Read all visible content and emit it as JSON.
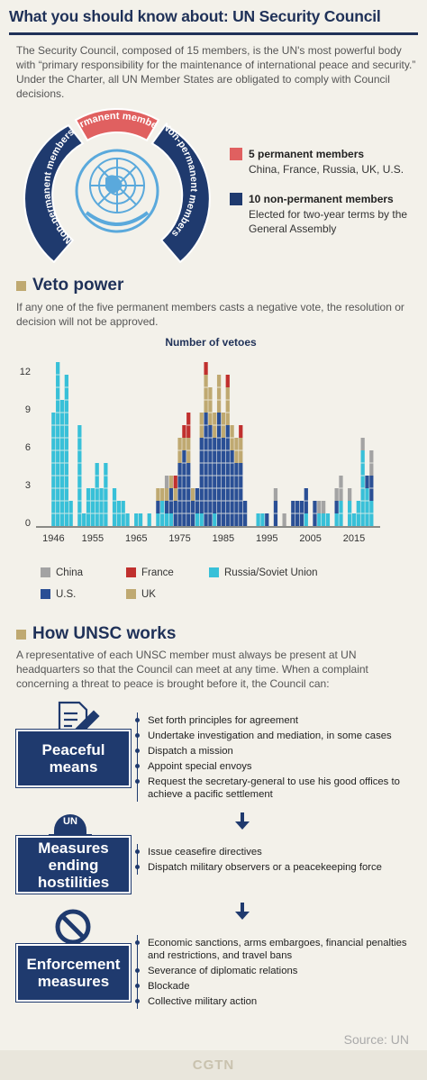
{
  "header": {
    "title": "What you should know about: UN Security Council",
    "intro": "The Security Council, composed of 15 members, is the UN's most powerful body with “primary responsibility for the maintenance of international peace and security.” Under the Charter, all UN Member States are obligated to comply with Council decisions."
  },
  "membership": {
    "arc_labels": [
      "Non-permanent members",
      "Permanent members",
      "Non-permanent members"
    ],
    "items": [
      {
        "title": "5 permanent members",
        "text": "China, France, Russia, UK, U.S."
      },
      {
        "title": "10 non-permanent members",
        "text": "Elected for two-year terms by the General Assembly"
      }
    ]
  },
  "veto": {
    "heading": "Veto power",
    "text": "If any one of the five permanent members casts a negative vote, the resolution or decision will not be approved."
  },
  "chart_data": {
    "type": "bar",
    "stacked": true,
    "title": "Number of vetoes",
    "x": [
      1946,
      1947,
      1948,
      1949,
      1950,
      1951,
      1952,
      1953,
      1954,
      1955,
      1956,
      1957,
      1958,
      1959,
      1960,
      1961,
      1962,
      1963,
      1964,
      1965,
      1966,
      1967,
      1968,
      1969,
      1970,
      1971,
      1972,
      1973,
      1974,
      1975,
      1976,
      1977,
      1978,
      1979,
      1980,
      1981,
      1982,
      1983,
      1984,
      1985,
      1986,
      1987,
      1988,
      1989,
      1990,
      1991,
      1992,
      1993,
      1994,
      1995,
      1996,
      1997,
      1998,
      1999,
      2000,
      2001,
      2002,
      2003,
      2004,
      2005,
      2006,
      2007,
      2008,
      2009,
      2010,
      2011,
      2012,
      2013,
      2014,
      2015,
      2016,
      2017,
      2018,
      2019
    ],
    "xlim": [
      1942,
      2021
    ],
    "xticks": [
      1946,
      1955,
      1965,
      1975,
      1985,
      1995,
      2005,
      2015
    ],
    "ylim": [
      0,
      13
    ],
    "yticks": [
      0,
      3,
      6,
      9,
      12
    ],
    "series": [
      {
        "name": "China",
        "color": "#a3a3a3",
        "values": [
          0,
          0,
          0,
          0,
          0,
          0,
          0,
          0,
          0,
          0,
          0,
          0,
          0,
          0,
          0,
          0,
          0,
          0,
          0,
          0,
          0,
          0,
          0,
          0,
          0,
          0,
          1,
          0,
          0,
          0,
          0,
          0,
          0,
          0,
          0,
          0,
          0,
          0,
          0,
          0,
          0,
          0,
          0,
          0,
          0,
          0,
          0,
          0,
          0,
          0,
          0,
          1,
          0,
          1,
          0,
          0,
          0,
          0,
          0,
          0,
          0,
          1,
          1,
          0,
          0,
          1,
          2,
          0,
          1,
          0,
          0,
          1,
          0,
          2
        ]
      },
      {
        "name": "France",
        "color": "#c0302e",
        "values": [
          0,
          0,
          0,
          0,
          0,
          0,
          0,
          0,
          0,
          0,
          0,
          0,
          0,
          0,
          0,
          0,
          0,
          0,
          0,
          0,
          0,
          0,
          0,
          0,
          0,
          0,
          0,
          0,
          1,
          0,
          1,
          2,
          0,
          0,
          0,
          1,
          0,
          0,
          0,
          0,
          1,
          0,
          0,
          1,
          0,
          0,
          0,
          0,
          0,
          0,
          0,
          0,
          0,
          0,
          0,
          0,
          0,
          0,
          0,
          0,
          0,
          0,
          0,
          0,
          0,
          0,
          0,
          0,
          0,
          0,
          0,
          0,
          0,
          0
        ]
      },
      {
        "name": "Russia/Soviet Union",
        "color": "#38c0d8",
        "values": [
          9,
          13,
          10,
          12,
          2,
          0,
          8,
          1,
          3,
          3,
          5,
          3,
          5,
          0,
          3,
          2,
          2,
          1,
          0,
          1,
          1,
          0,
          1,
          0,
          1,
          2,
          1,
          1,
          0,
          0,
          0,
          0,
          0,
          1,
          1,
          0,
          0,
          1,
          0,
          0,
          0,
          0,
          0,
          0,
          0,
          0,
          0,
          1,
          1,
          0,
          0,
          0,
          0,
          0,
          0,
          0,
          0,
          0,
          1,
          0,
          0,
          1,
          1,
          1,
          0,
          1,
          2,
          0,
          2,
          1,
          2,
          6,
          3,
          2
        ]
      },
      {
        "name": "U.S.",
        "color": "#2a4f95",
        "values": [
          0,
          0,
          0,
          0,
          0,
          0,
          0,
          0,
          0,
          0,
          0,
          0,
          0,
          0,
          0,
          0,
          0,
          0,
          0,
          0,
          0,
          0,
          0,
          0,
          1,
          0,
          1,
          2,
          2,
          5,
          6,
          5,
          2,
          2,
          6,
          9,
          8,
          6,
          9,
          7,
          8,
          6,
          5,
          5,
          2,
          0,
          0,
          0,
          0,
          1,
          0,
          2,
          0,
          0,
          0,
          2,
          2,
          2,
          2,
          0,
          2,
          0,
          0,
          0,
          0,
          1,
          0,
          0,
          0,
          0,
          0,
          0,
          1,
          2
        ]
      },
      {
        "name": "UK",
        "color": "#bfa971",
        "values": [
          0,
          0,
          0,
          0,
          0,
          0,
          0,
          0,
          0,
          0,
          0,
          0,
          0,
          0,
          0,
          0,
          0,
          0,
          0,
          0,
          0,
          0,
          0,
          0,
          1,
          1,
          1,
          1,
          1,
          2,
          1,
          2,
          1,
          0,
          2,
          3,
          3,
          2,
          3,
          2,
          3,
          2,
          2,
          2,
          0,
          0,
          0,
          0,
          0,
          0,
          0,
          0,
          0,
          0,
          0,
          0,
          0,
          0,
          0,
          0,
          0,
          0,
          0,
          0,
          0,
          0,
          0,
          0,
          0,
          0,
          0,
          0,
          0,
          0
        ]
      }
    ]
  },
  "works": {
    "heading": "How UNSC works",
    "text": "A representative of each UNSC member must always be present at UN headquarters so that the Council can meet at any time. When a complaint concerning a threat to peace is brought before it, the Council can:",
    "steps": [
      {
        "label": "Peaceful means",
        "items": [
          "Set forth principles for agreement",
          "Undertake investigation and mediation, in some cases",
          "Dispatch a mission",
          "Appoint special envoys",
          "Request the secretary-general to use his good offices to achieve a pacific settlement"
        ]
      },
      {
        "label": "Measures ending hostilities",
        "icon_text": "UN",
        "items": [
          "Issue ceasefire directives",
          "Dispatch military observers or a peacekeeping force"
        ]
      },
      {
        "label": "Enforcement measures",
        "items": [
          "Economic sanctions, arms embargoes, financial penalties and restrictions, and travel bans",
          "Severance of diplomatic relations",
          "Blockade",
          "Collective military action"
        ]
      }
    ]
  },
  "source": "Source: UN",
  "footer": "CGTN"
}
